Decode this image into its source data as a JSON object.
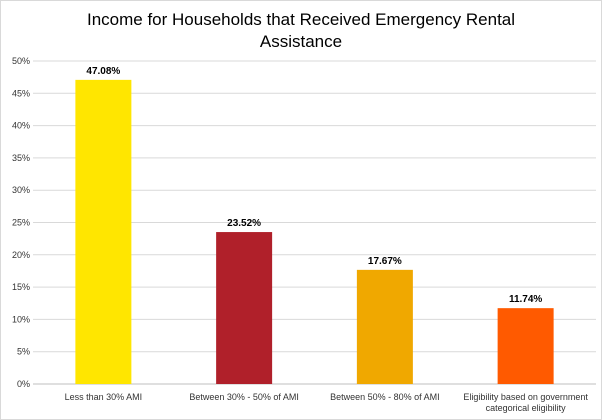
{
  "chart_data": {
    "type": "bar",
    "title": "Income for Households that Received Emergency Rental Assistance",
    "xlabel": "",
    "ylabel": "",
    "categories": [
      [
        "Less than 30% AMI"
      ],
      [
        "Between 30% - 50% of AMI"
      ],
      [
        "Between 50% - 80% of AMI"
      ],
      [
        "Eligibility based on government",
        "categorical eligibility"
      ]
    ],
    "values": [
      47.08,
      23.52,
      17.67,
      11.74
    ],
    "data_labels": [
      "47.08%",
      "23.52%",
      "17.67%",
      "11.74%"
    ],
    "colors": [
      "#FFE600",
      "#B0202A",
      "#F0A800",
      "#FF5A00"
    ],
    "ylim": [
      0,
      50
    ],
    "yticks": [
      0,
      5,
      10,
      15,
      20,
      25,
      30,
      35,
      40,
      45,
      50
    ],
    "ytick_labels": [
      "0%",
      "5%",
      "10%",
      "15%",
      "20%",
      "25%",
      "30%",
      "35%",
      "40%",
      "45%",
      "50%"
    ],
    "grid": true,
    "legend": "none"
  }
}
